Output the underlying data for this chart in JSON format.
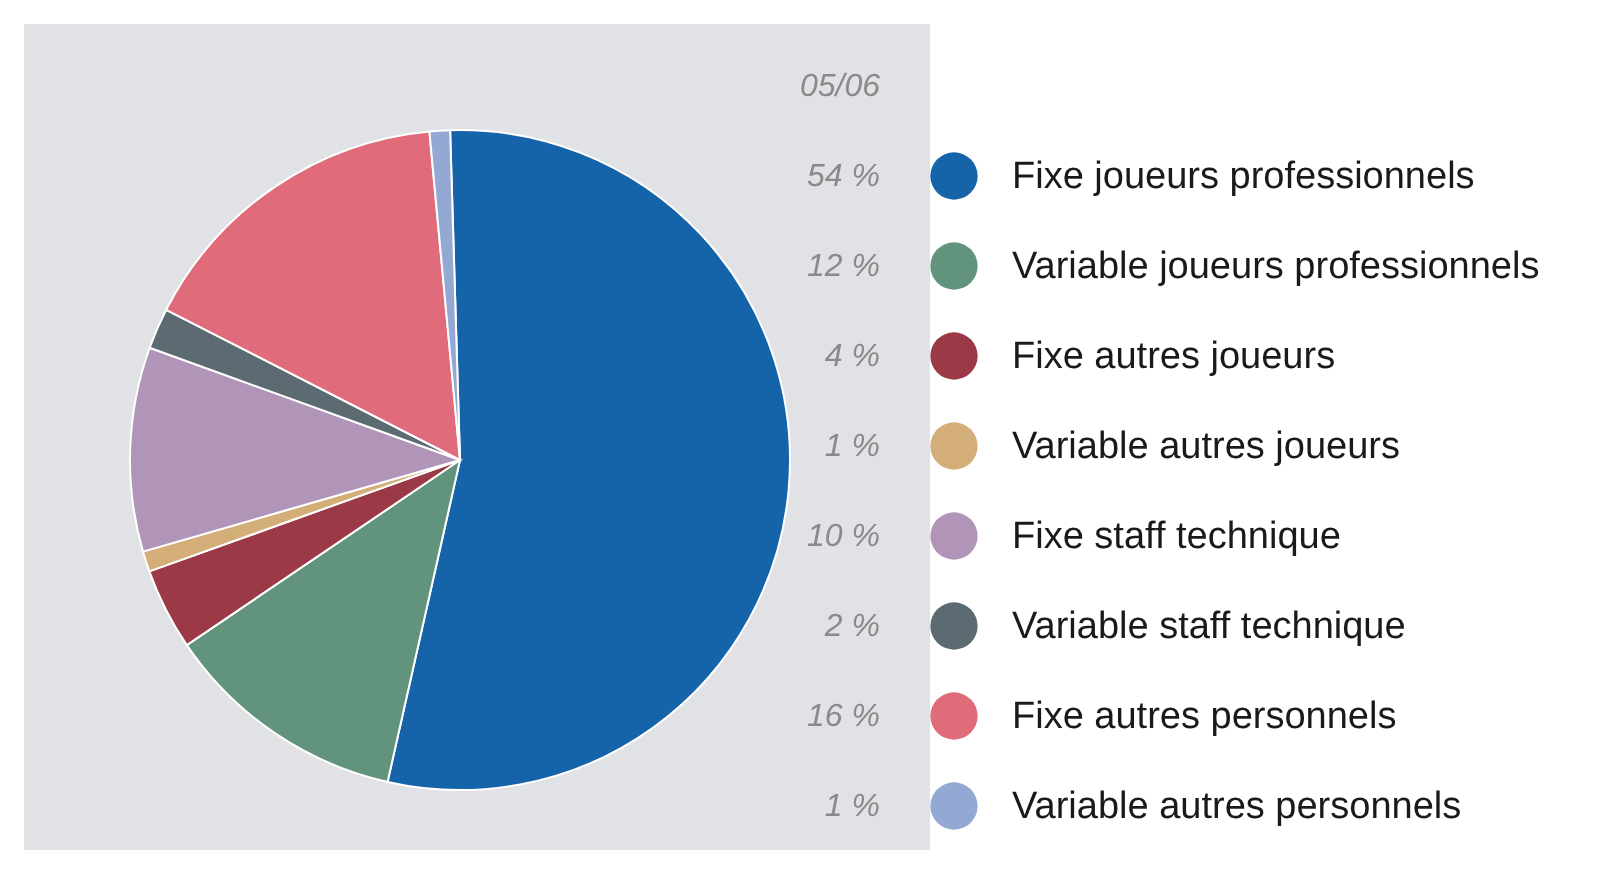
{
  "chart_data": {
    "type": "pie",
    "legend_title": "05/06",
    "categories": [
      "Fixe joueurs professionnels",
      "Variable joueurs professionnels",
      "Fixe autres joueurs",
      "Variable autres joueurs",
      "Fixe staff technique",
      "Variable staff technique",
      "Fixe autres personnels",
      "Variable autres personnels"
    ],
    "values": [
      54,
      12,
      4,
      1,
      10,
      2,
      16,
      1
    ],
    "value_labels": [
      "54 %",
      "12 %",
      "4 %",
      "1 %",
      "10 %",
      "2 %",
      "16 %",
      "1 %"
    ],
    "colors": [
      "#1563a8",
      "#62937d",
      "#9b3a46",
      "#d4ae78",
      "#b095b8",
      "#5c6b72",
      "#e06b7a",
      "#93a9d4"
    ],
    "legend": "right"
  }
}
